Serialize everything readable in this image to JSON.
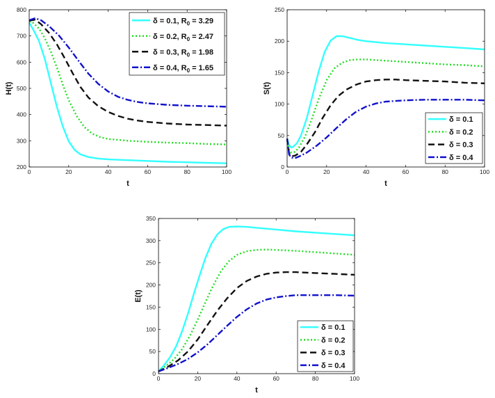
{
  "chart_data": [
    {
      "type": "line",
      "xlabel": "t",
      "ylabel": "H(t)",
      "xlim": [
        0,
        100
      ],
      "ylim": [
        200,
        800
      ],
      "xticks": [
        0,
        20,
        40,
        60,
        80,
        100
      ],
      "yticks": [
        200,
        300,
        400,
        500,
        600,
        700,
        800
      ],
      "legend_position": "top-right",
      "grid": false,
      "series": [
        {
          "name": "δ = 0.1, R",
          "sub": "0",
          "suffix": " = 3.29",
          "color": "#33ffff",
          "dash": "solid",
          "x": [
            0,
            2,
            5,
            8,
            11,
            14,
            17,
            20,
            23,
            26,
            30,
            35,
            40,
            50,
            60,
            70,
            80,
            90,
            100
          ],
          "y": [
            750,
            725,
            680,
            610,
            520,
            430,
            355,
            298,
            265,
            248,
            238,
            232,
            229,
            226,
            223,
            220,
            218,
            216,
            214
          ]
        },
        {
          "name": "δ = 0.2, R",
          "sub": "0",
          "suffix": " = 2.47",
          "color": "#22dd22",
          "dash": "dot",
          "x": [
            0,
            2,
            5,
            8,
            11,
            14,
            17,
            20,
            24,
            28,
            32,
            36,
            40,
            50,
            60,
            70,
            80,
            90,
            100
          ],
          "y": [
            755,
            750,
            728,
            690,
            640,
            580,
            515,
            455,
            395,
            352,
            327,
            314,
            307,
            300,
            296,
            293,
            291,
            288,
            286
          ]
        },
        {
          "name": "δ = 0.3, R",
          "sub": "0",
          "suffix": " = 1.98",
          "color": "#111111",
          "dash": "dash",
          "x": [
            0,
            3,
            6,
            10,
            14,
            18,
            22,
            26,
            30,
            35,
            40,
            45,
            50,
            55,
            60,
            70,
            80,
            90,
            100
          ],
          "y": [
            758,
            762,
            745,
            712,
            668,
            615,
            558,
            505,
            465,
            432,
            410,
            395,
            384,
            377,
            372,
            366,
            362,
            360,
            358
          ]
        },
        {
          "name": "δ = 0.4, R",
          "sub": "0",
          "suffix": " = 1.65",
          "color": "#1111cc",
          "dash": "dashdot",
          "x": [
            0,
            3,
            6,
            10,
            15,
            20,
            25,
            30,
            35,
            40,
            45,
            50,
            55,
            60,
            70,
            80,
            90,
            100
          ],
          "y": [
            760,
            768,
            760,
            738,
            702,
            656,
            605,
            556,
            517,
            488,
            468,
            456,
            448,
            443,
            437,
            434,
            432,
            430
          ]
        }
      ]
    },
    {
      "type": "line",
      "xlabel": "t",
      "ylabel": "S(t)",
      "xlim": [
        0,
        100
      ],
      "ylim": [
        0,
        250
      ],
      "xticks": [
        0,
        20,
        40,
        60,
        80,
        100
      ],
      "yticks": [
        0,
        50,
        100,
        150,
        200,
        250
      ],
      "legend_position": "bottom-right",
      "grid": false,
      "series": [
        {
          "name": "δ = 0.1",
          "color": "#33ffff",
          "dash": "solid",
          "x": [
            0,
            1,
            2,
            3,
            5,
            7,
            10,
            13,
            16,
            19,
            22,
            25,
            28,
            32,
            36,
            40,
            50,
            60,
            70,
            80,
            90,
            100
          ],
          "y": [
            45,
            35,
            31,
            32,
            38,
            50,
            78,
            115,
            152,
            183,
            201,
            208,
            208,
            205,
            202,
            200,
            197,
            195,
            193,
            191,
            189,
            187
          ]
        },
        {
          "name": "δ = 0.2",
          "color": "#22dd22",
          "dash": "dot",
          "x": [
            0,
            1,
            2,
            4,
            6,
            9,
            12,
            16,
            20,
            24,
            28,
            32,
            36,
            40,
            45,
            50,
            60,
            70,
            80,
            90,
            100
          ],
          "y": [
            45,
            27,
            23,
            24,
            31,
            48,
            72,
            108,
            138,
            157,
            166,
            170,
            171,
            171,
            170,
            169,
            167,
            165,
            163,
            162,
            160
          ]
        },
        {
          "name": "δ = 0.3",
          "color": "#111111",
          "dash": "dash",
          "x": [
            0,
            1,
            2,
            4,
            7,
            10,
            14,
            18,
            22,
            26,
            30,
            35,
            40,
            45,
            50,
            55,
            60,
            70,
            80,
            90,
            100
          ],
          "y": [
            45,
            22,
            17,
            18,
            24,
            36,
            55,
            78,
            98,
            113,
            123,
            131,
            136,
            138,
            139,
            139,
            138,
            137,
            136,
            134,
            133
          ]
        },
        {
          "name": "δ = 0.4",
          "color": "#1111cc",
          "dash": "dashdot",
          "x": [
            0,
            1,
            2,
            4,
            7,
            10,
            15,
            20,
            25,
            30,
            35,
            40,
            45,
            50,
            55,
            60,
            70,
            80,
            90,
            100
          ],
          "y": [
            45,
            20,
            15,
            14,
            18,
            23,
            34,
            47,
            62,
            76,
            88,
            96,
            101,
            104,
            105,
            106,
            107,
            107,
            107,
            106
          ]
        }
      ]
    },
    {
      "type": "line",
      "xlabel": "t",
      "ylabel": "E(t)",
      "xlim": [
        0,
        100
      ],
      "ylim": [
        0,
        350
      ],
      "xticks": [
        0,
        20,
        40,
        60,
        80,
        100
      ],
      "yticks": [
        0,
        50,
        100,
        150,
        200,
        250,
        300,
        350
      ],
      "legend_position": "bottom-right",
      "grid": false,
      "series": [
        {
          "name": "δ = 0.1",
          "color": "#33ffff",
          "dash": "solid",
          "x": [
            0,
            3,
            6,
            9,
            12,
            15,
            18,
            21,
            24,
            27,
            30,
            33,
            36,
            40,
            45,
            50,
            60,
            70,
            80,
            90,
            100
          ],
          "y": [
            5,
            20,
            38,
            62,
            95,
            135,
            180,
            222,
            262,
            293,
            314,
            326,
            331,
            332,
            331,
            329,
            325,
            321,
            318,
            315,
            312
          ]
        },
        {
          "name": "δ = 0.2",
          "color": "#22dd22",
          "dash": "dot",
          "x": [
            0,
            4,
            8,
            12,
            16,
            20,
            24,
            28,
            32,
            36,
            40,
            45,
            50,
            55,
            60,
            70,
            80,
            90,
            100
          ],
          "y": [
            5,
            18,
            33,
            55,
            85,
            122,
            162,
            200,
            232,
            254,
            268,
            276,
            279,
            280,
            279,
            277,
            274,
            271,
            268
          ]
        },
        {
          "name": "δ = 0.3",
          "color": "#111111",
          "dash": "dash",
          "x": [
            0,
            5,
            10,
            15,
            20,
            25,
            30,
            35,
            40,
            45,
            50,
            55,
            60,
            65,
            70,
            80,
            90,
            100
          ],
          "y": [
            5,
            16,
            30,
            50,
            77,
            110,
            142,
            170,
            193,
            209,
            219,
            225,
            228,
            229,
            229,
            227,
            225,
            223
          ]
        },
        {
          "name": "δ = 0.4",
          "color": "#1111cc",
          "dash": "dashdot",
          "x": [
            0,
            5,
            10,
            15,
            20,
            25,
            30,
            35,
            40,
            45,
            50,
            55,
            60,
            65,
            70,
            80,
            90,
            100
          ],
          "y": [
            5,
            13,
            22,
            33,
            48,
            66,
            87,
            108,
            128,
            145,
            158,
            167,
            172,
            175,
            177,
            177,
            177,
            176
          ]
        }
      ]
    }
  ]
}
